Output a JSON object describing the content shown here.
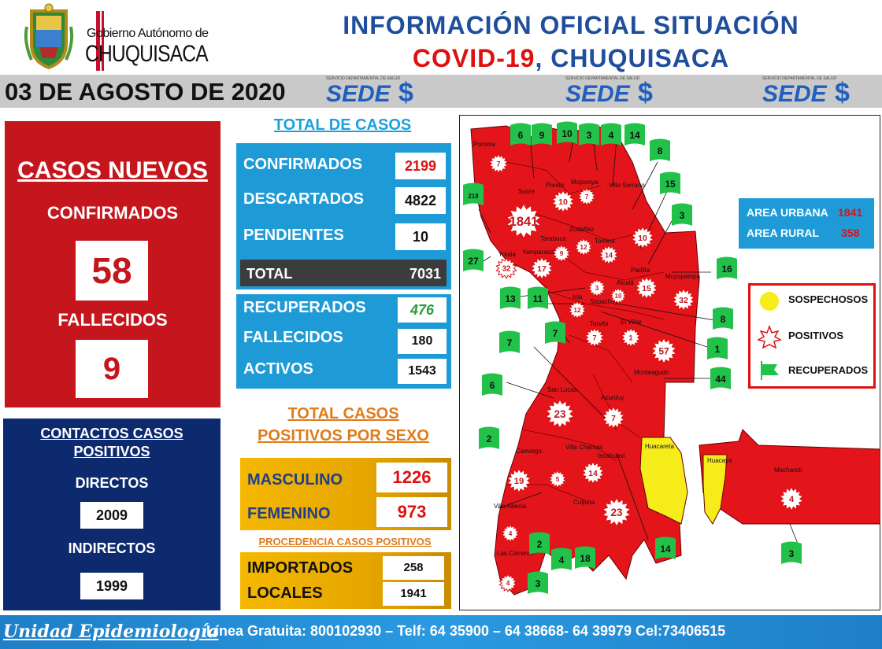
{
  "header": {
    "gov_line1": "Gobierno Autónomo de",
    "gov_line2": "CHUQUISACA",
    "title_line1": "INFORMACIÓN OFICIAL SITUACIÓN",
    "title_line2_a": "COVID-19",
    "title_line2_b": ", CHUQUISACA",
    "date": "03 DE AGOSTO DE 2020",
    "sedes_small": "SERVICIO DEPARTAMENTAL DE SALUD",
    "sedes_word": "SEDE",
    "sedes_symbol": "$"
  },
  "new_cases": {
    "title": "CASOS NUEVOS",
    "confirmed_label": "CONFIRMADOS",
    "confirmed_value": "58",
    "deaths_label": "FALLECIDOS",
    "deaths_value": "9"
  },
  "contacts": {
    "title_line1": "CONTACTOS CASOS",
    "title_line2": "POSITIVOS",
    "direct_label": "DIRECTOS",
    "direct_value": "2009",
    "indirect_label": "INDIRECTOS",
    "indirect_value": "1999"
  },
  "totals": {
    "title": "TOTAL DE CASOS",
    "confirmed_label": "CONFIRMADOS",
    "confirmed_value": "2199",
    "discarded_label": "DESCARTADOS",
    "discarded_value": "4822",
    "pending_label": "PENDIENTES",
    "pending_value": "10",
    "total_label": "TOTAL",
    "total_value": "7031",
    "recovered_label": "RECUPERADOS",
    "recovered_value": "476",
    "deceased_label": "FALLECIDOS",
    "deceased_value": "180",
    "active_label": "ACTIVOS",
    "active_value": "1543"
  },
  "sex": {
    "title_line1": "TOTAL CASOS",
    "title_line2": "POSITIVOS POR SEXO",
    "male_label": "MASCULINO",
    "male_value": "1226",
    "female_label": "FEMENINO",
    "female_value": "973"
  },
  "origin": {
    "title": "PROCEDENCIA CASOS POSITIVOS",
    "imported_label": "IMPORTADOS",
    "imported_value": "258",
    "local_label": "LOCALES",
    "local_value": "1941"
  },
  "area": {
    "urban_label": "AREA URBANA",
    "urban_value": "1841",
    "rural_label": "AREA RURAL",
    "rural_value": "358"
  },
  "legend": {
    "suspected": "SOSPECHOSOS",
    "positive": "POSITIVOS",
    "recovered": "RECUPERADOS"
  },
  "map": {
    "municipality_labels": [
      {
        "name": "Poroma"
      },
      {
        "name": "Sucre"
      },
      {
        "name": "Presto"
      },
      {
        "name": "Mojocoya"
      },
      {
        "name": "Villa Serrano"
      },
      {
        "name": "Zudañez"
      },
      {
        "name": "Tarabuco"
      },
      {
        "name": "Tomina"
      },
      {
        "name": "Yotala"
      },
      {
        "name": "Yamparaez"
      },
      {
        "name": "Padilla"
      },
      {
        "name": "Muyupampa"
      },
      {
        "name": "Icla"
      },
      {
        "name": "Alcalá"
      },
      {
        "name": "Sopachuy"
      },
      {
        "name": "Tarvita"
      },
      {
        "name": "El Villar"
      },
      {
        "name": "Monteagudo"
      },
      {
        "name": "San Lucas"
      },
      {
        "name": "Azurduy"
      },
      {
        "name": "Camargo"
      },
      {
        "name": "Villa Charcas"
      },
      {
        "name": "Incahuasi"
      },
      {
        "name": "Huacareta"
      },
      {
        "name": "Huacaya"
      },
      {
        "name": "Machareti"
      },
      {
        "name": "Culpina"
      },
      {
        "name": "Villa Abecia"
      },
      {
        "name": "Las Carreras"
      }
    ],
    "positives": [
      "7",
      "1841",
      "10",
      "7",
      "10",
      "9",
      "12",
      "14",
      "32",
      "17",
      "3",
      "15",
      "32",
      "10",
      "12",
      "7",
      "1",
      "57",
      "23",
      "7",
      "19",
      "5",
      "14",
      "23",
      "4",
      "4",
      "4"
    ],
    "recovered": [
      "6",
      "9",
      "10",
      "3",
      "4",
      "14",
      "8",
      "218",
      "15",
      "3",
      "27",
      "16",
      "13",
      "11",
      "8",
      "7",
      "7",
      "1",
      "6",
      "44",
      "2",
      "2",
      "4",
      "18",
      "14",
      "3",
      "3"
    ]
  },
  "footer": {
    "left": "Unidad Epidemiología",
    "right": "Línea Gratuita: 800102930 – Telf: 64 35900 – 64 38668- 64 39979 Cel:73406515"
  },
  "colors": {
    "red": "#c4161c",
    "navy": "#0d2a6e",
    "blue": "#1e9bd7",
    "gold": "#f5b800",
    "title_blue": "#1f4e9c",
    "recovered_green": "#22c14a",
    "suspected_yellow": "#f5ec1a"
  }
}
